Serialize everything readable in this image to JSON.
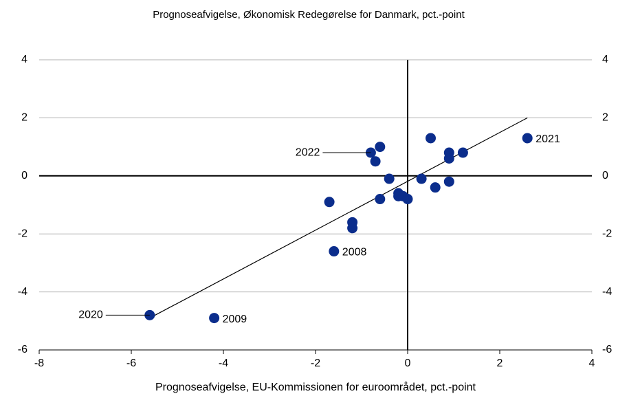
{
  "chart_data": {
    "type": "scatter",
    "title": "Prognoseafvigelse, Økonomisk Redegørelse for Danmark, pct.-point",
    "x_label": "Prognoseafvigelse, EU-Kommissionen for euroområdet, pct.-point",
    "color": "#0b2d8c",
    "x": [
      -5.6,
      -4.2,
      -1.7,
      -1.6,
      -1.2,
      -1.2,
      -0.8,
      -0.6,
      -0.7,
      -0.6,
      -0.4,
      -0.2,
      -0.2,
      -0.1,
      0.0,
      0.3,
      0.5,
      0.6,
      0.9,
      0.9,
      0.9,
      1.2,
      2.6
    ],
    "values": [
      -4.8,
      -4.9,
      -0.9,
      -2.6,
      -1.6,
      -1.8,
      0.8,
      1.0,
      0.5,
      -0.8,
      -0.1,
      -0.6,
      -0.7,
      -0.7,
      -0.8,
      -0.1,
      1.3,
      -0.4,
      0.8,
      0.6,
      -0.2,
      0.8,
      1.3
    ],
    "labels": [
      "2020",
      "2009",
      null,
      "2008",
      null,
      null,
      "2022",
      null,
      null,
      null,
      null,
      null,
      null,
      null,
      null,
      null,
      null,
      null,
      null,
      null,
      null,
      null,
      "2021"
    ],
    "trendline": {
      "x": [
        -5.6,
        2.6
      ],
      "y": [
        -4.9,
        2.0
      ]
    },
    "xlim": [
      -8,
      4
    ],
    "xticks": [
      -8,
      -6,
      -4,
      -2,
      0,
      2,
      4
    ],
    "ylim": [
      -6,
      4
    ],
    "yticks": [
      -6,
      -4,
      -2,
      0,
      2,
      4
    ],
    "grid": true
  }
}
